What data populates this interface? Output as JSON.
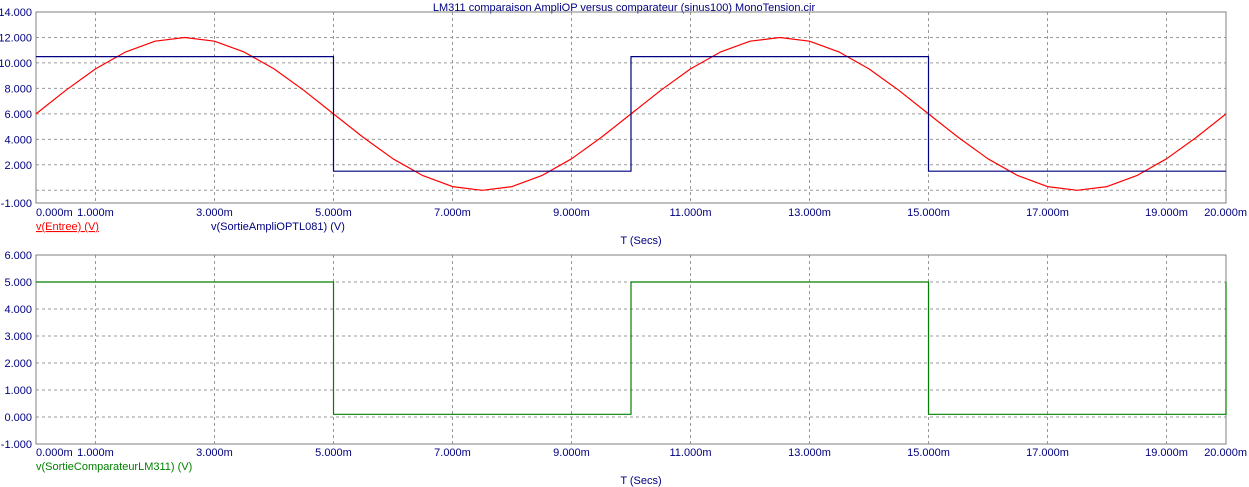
{
  "title": "LM311 comparaison AmpliOP versus comparateur (sinus100) MonoTension.cir",
  "chart_data": [
    {
      "type": "line",
      "x_tick_labels": [
        "0.000m",
        "1.000m",
        "3.000m",
        "5.000m",
        "7.000m",
        "9.000m",
        "11.000m",
        "13.000m",
        "15.000m",
        "17.000m",
        "19.000m",
        "20.000m"
      ],
      "y_tick_labels": [
        "14.000",
        "12.000",
        "10.000",
        "8.000",
        "6.000",
        "4.000",
        "2.000",
        "-1.000"
      ],
      "xlabel": "T (Secs)",
      "xlim": [
        0,
        20
      ],
      "ylim": [
        -1,
        14
      ],
      "grid": true,
      "series": [
        {
          "name": "v(Entree) (V)",
          "color": "#ff0000",
          "x": [
            0,
            0.5,
            1,
            1.5,
            2,
            2.5,
            3,
            3.5,
            4,
            4.5,
            5,
            5.5,
            6,
            6.5,
            7,
            7.5,
            8,
            8.5,
            9,
            9.5,
            10,
            10.5,
            11,
            11.5,
            12,
            12.5,
            13,
            13.5,
            14,
            14.5,
            15,
            15.5,
            16,
            16.5,
            17,
            17.5,
            18,
            18.5,
            19,
            19.5,
            20
          ],
          "values": [
            6.0,
            7.85,
            9.53,
            10.85,
            11.71,
            12.0,
            11.71,
            10.85,
            9.53,
            7.85,
            6.0,
            4.15,
            2.47,
            1.15,
            0.29,
            0.0,
            0.29,
            1.15,
            2.47,
            4.15,
            6.0,
            7.85,
            9.53,
            10.85,
            11.71,
            12.0,
            11.71,
            10.85,
            9.53,
            7.85,
            6.0,
            4.15,
            2.47,
            1.15,
            0.29,
            0.0,
            0.29,
            1.15,
            2.47,
            4.15,
            6.0
          ]
        },
        {
          "name": "v(SortieAmpliOPTL081) (V)",
          "color": "#000080",
          "x": [
            0,
            5,
            5,
            10,
            10,
            15,
            15,
            20
          ],
          "values": [
            10.5,
            10.5,
            1.5,
            1.5,
            10.5,
            10.5,
            1.5,
            1.5
          ]
        }
      ]
    },
    {
      "type": "line",
      "x_tick_labels": [
        "0.000m",
        "1.000m",
        "3.000m",
        "5.000m",
        "7.000m",
        "9.000m",
        "11.000m",
        "13.000m",
        "15.000m",
        "17.000m",
        "19.000m",
        "20.000m"
      ],
      "y_tick_labels": [
        "6.000",
        "5.000",
        "4.000",
        "3.000",
        "2.000",
        "1.000",
        "0.000",
        "-1.000"
      ],
      "xlabel": "T (Secs)",
      "xlim": [
        0,
        20
      ],
      "ylim": [
        -1,
        6
      ],
      "grid": true,
      "series": [
        {
          "name": "v(SortieComparateurLM311) (V)",
          "color": "#008000",
          "x": [
            0,
            5,
            5,
            10,
            10,
            15,
            15,
            20,
            20
          ],
          "values": [
            5.0,
            5.0,
            0.1,
            0.1,
            5.0,
            5.0,
            0.1,
            0.1,
            5.0
          ]
        }
      ]
    }
  ]
}
